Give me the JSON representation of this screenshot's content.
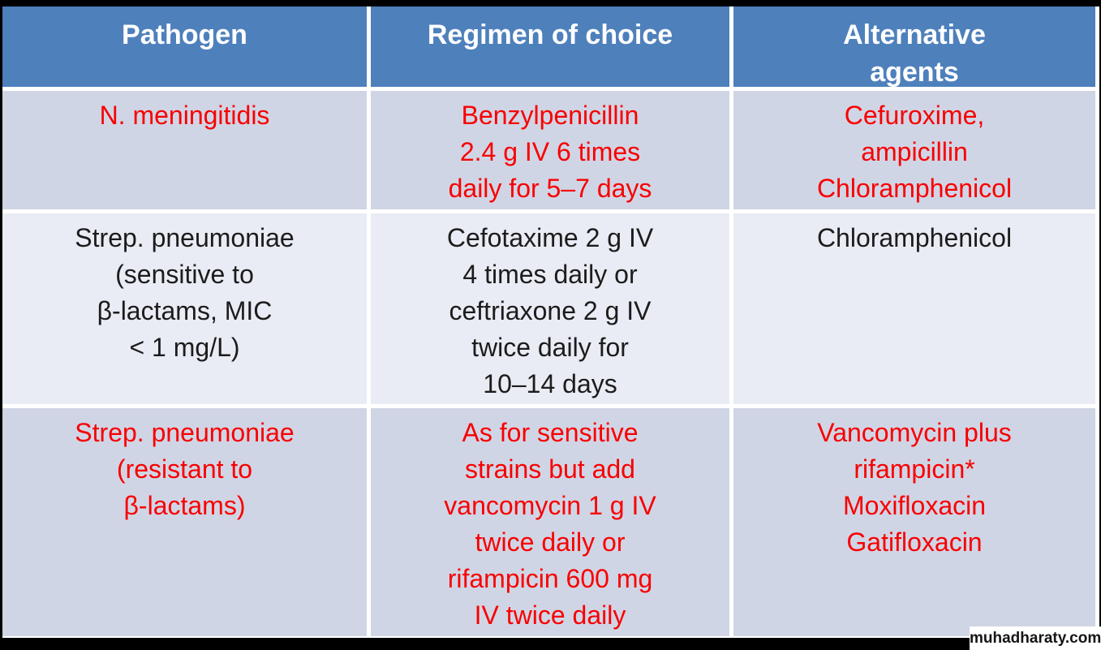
{
  "colors": {
    "header_bg": "#4E80BC",
    "header_text": "#FFFFFF",
    "band_dark": "#D0D5E5",
    "band_light": "#E9ECF4",
    "red_text": "#F80000",
    "black_text": "#1C1C1C"
  },
  "table": {
    "columns": [
      {
        "lines": [
          "Pathogen"
        ]
      },
      {
        "lines": [
          "Regimen of choice"
        ]
      },
      {
        "lines": [
          "Alternative",
          "agents"
        ]
      }
    ],
    "rows": [
      {
        "text_color": "red",
        "band": "dark",
        "cells": [
          {
            "lines": [
              "N. meningitidis"
            ]
          },
          {
            "lines": [
              "Benzylpenicillin",
              "2.4 g IV 6 times",
              "daily for 5–7 days"
            ]
          },
          {
            "lines": [
              "Cefuroxime,",
              "ampicillin",
              "Chloramphenicol"
            ]
          }
        ]
      },
      {
        "text_color": "black",
        "band": "light",
        "cells": [
          {
            "lines": [
              "Strep. pneumoniae",
              "(sensitive to",
              "β-lactams, MIC",
              "< 1 mg/L)"
            ]
          },
          {
            "lines": [
              "Cefotaxime 2 g IV",
              "4 times daily or",
              "ceftriaxone 2 g IV",
              "twice daily for",
              "10–14 days"
            ]
          },
          {
            "lines": [
              "Chloramphenicol"
            ]
          }
        ]
      },
      {
        "text_color": "red",
        "band": "dark",
        "cells": [
          {
            "lines": [
              "Strep. pneumoniae",
              "(resistant to",
              "β-lactams)"
            ]
          },
          {
            "lines": [
              "As for sensitive",
              "strains but add",
              "vancomycin 1 g IV",
              "twice daily or",
              "rifampicin 600 mg",
              "IV twice daily"
            ]
          },
          {
            "lines": [
              "Vancomycin plus",
              "rifampicin*",
              "Moxifloxacin",
              "Gatifloxacin"
            ]
          }
        ]
      }
    ]
  },
  "watermark": {
    "text": "muhadharaty.com"
  }
}
